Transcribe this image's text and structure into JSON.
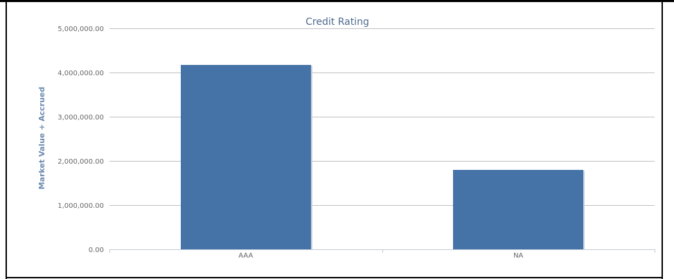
{
  "chart_data": {
    "type": "bar",
    "title": "Credit Rating",
    "xlabel": "",
    "ylabel": "Market Value + Accrued",
    "categories": [
      "AAA",
      "NA"
    ],
    "values": [
      4170000,
      1800000
    ],
    "ylim": [
      0,
      5000000
    ],
    "yticks": [
      0,
      1000000,
      2000000,
      3000000,
      4000000,
      5000000
    ],
    "ytick_labels": [
      "0.00",
      "1,000,000.00",
      "2,000,000.00",
      "3,000,000.00",
      "4,000,000.00",
      "5,000,000.00"
    ],
    "grid": true,
    "legend": "none",
    "colors": {
      "bar": "#4573a7",
      "bar_shadow": "#c9d3e0",
      "grid": "#c0c0c0",
      "title": "#4d6a8f",
      "ylabel": "#6e8bb0"
    }
  }
}
